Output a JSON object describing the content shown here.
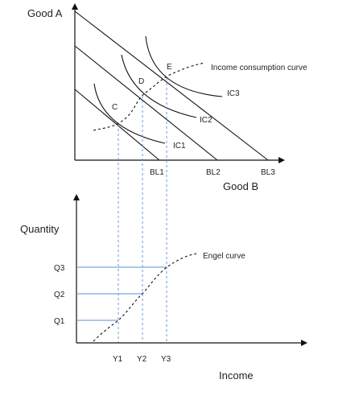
{
  "top_panel": {
    "y_axis_label": "Good A",
    "x_axis_label": "Good B",
    "budget_lines": [
      "BL1",
      "BL2",
      "BL3"
    ],
    "indifference_curves": [
      "IC1",
      "IC2",
      "IC3"
    ],
    "points": [
      "C",
      "D",
      "E"
    ],
    "curve_label": "Income consumption curve"
  },
  "bottom_panel": {
    "y_axis_label": "Quantity",
    "x_axis_label": "Income",
    "y_ticks": [
      "Q1",
      "Q2",
      "Q3"
    ],
    "x_ticks": [
      "Y1",
      "Y2",
      "Y3"
    ],
    "curve_label": "Engel curve"
  },
  "colors": {
    "axis": "#111111",
    "projection_lines": "#5b8fd6"
  }
}
